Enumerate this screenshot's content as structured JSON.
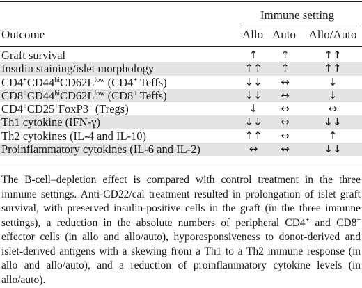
{
  "header": {
    "group_title": "Immune setting",
    "outcome_label": "Outcome",
    "columns": [
      "Allo",
      "Auto",
      "Allo/Auto"
    ]
  },
  "rows": [
    {
      "label_html": "Graft survival",
      "allo": "↑",
      "auto": "↑",
      "alloauto": "↑↑",
      "shaded": false
    },
    {
      "label_html": "Insulin staining/islet morphology",
      "allo": "↑↑",
      "auto": "↑",
      "alloauto": "↑↑",
      "shaded": true
    },
    {
      "label_html": "CD4<sup>+</sup>CD44<sup>hi</sup>CD62L<sup>low</sup> (CD4<sup>+</sup> Teffs)",
      "allo": "↓↓",
      "auto": "↔",
      "alloauto": "↓",
      "shaded": false
    },
    {
      "label_html": "CD8<sup>+</sup>CD44<sup>hi</sup>CD62L<sup>low</sup> (CD8<sup>+</sup> Teffs)",
      "allo": "↓↓",
      "auto": "↔",
      "alloauto": "↓",
      "shaded": true
    },
    {
      "label_html": "CD4<sup>+</sup>CD25<sup>+</sup>FoxP3<sup>+</sup> (Tregs)",
      "allo": "↓",
      "auto": "↔",
      "alloauto": "↔",
      "shaded": false
    },
    {
      "label_html": "Th1 cytokine (IFN-γ)",
      "allo": "↓↓",
      "auto": "↔",
      "alloauto": "↓↓",
      "shaded": true
    },
    {
      "label_html": "Th2 cytokines (IL-4 and IL-10)",
      "allo": "↑↑",
      "auto": "↔",
      "alloauto": "↑",
      "shaded": false
    },
    {
      "label_html": "Proinflammatory cytokines (IL-6 and IL-2)",
      "allo": "↔",
      "auto": "↔",
      "alloauto": "↓↓",
      "shaded": true
    }
  ],
  "footnote_html": "The B-cell–depletion effect is compared with control treatment in the three immune settings. Anti-CD22/cal treatment resulted in prolongation of islet graft survival, with preserved insulin-positive cells in the graft (in the three immune settings), a reduction in the absolute numbers of peripheral CD4<sup>+</sup> and CD8<sup>+</sup> effector cells (in allo and allo/auto), hyporesponsiveness to donor-derived and islet-derived antigens with a skewing from a Th1 to a Th2 immune response (in allo and allo/auto), and a reduction of proinflammatory cytokine levels (in allo/auto)."
}
